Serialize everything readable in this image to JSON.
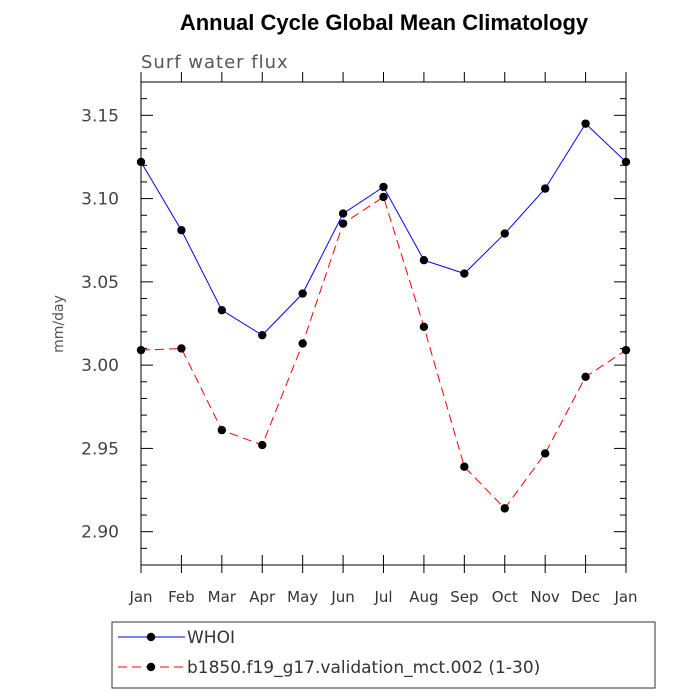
{
  "chart_data": {
    "type": "line",
    "title": "Annual Cycle Global Mean Climatology",
    "subtitle": "Surf water flux",
    "ylabel": "mm/day",
    "xlabel": "",
    "categories": [
      "Jan",
      "Feb",
      "Mar",
      "Apr",
      "May",
      "Jun",
      "Jul",
      "Aug",
      "Sep",
      "Oct",
      "Nov",
      "Dec",
      "Jan"
    ],
    "ylim": [
      2.88,
      3.17
    ],
    "yticks": [
      "2.90",
      "2.95",
      "3.00",
      "3.05",
      "3.10",
      "3.15"
    ],
    "grid": false,
    "legend_position": "bottom",
    "series": [
      {
        "name": "WHOI",
        "color": "#0000ff",
        "dash": "solid",
        "values": [
          3.122,
          3.081,
          3.033,
          3.018,
          3.043,
          3.091,
          3.107,
          3.063,
          3.055,
          3.079,
          3.106,
          3.145,
          3.122
        ]
      },
      {
        "name": "b1850.f19_g17.validation_mct.002 (1-30)",
        "color": "#ff0000",
        "dash": "dashed",
        "values": [
          3.009,
          3.01,
          2.961,
          2.952,
          3.013,
          3.085,
          3.101,
          3.023,
          2.939,
          2.914,
          2.947,
          2.993,
          3.009
        ]
      }
    ]
  }
}
